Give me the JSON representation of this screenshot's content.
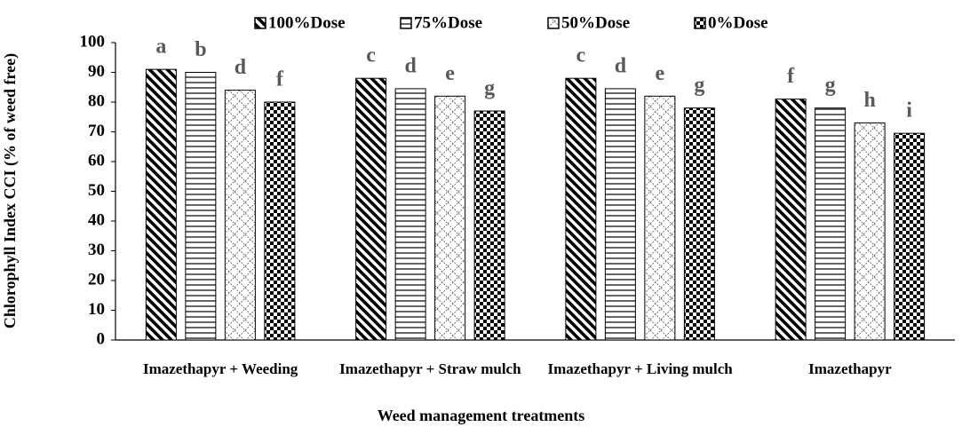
{
  "chart_data": {
    "type": "bar",
    "x_label": "Weed management treatments",
    "y_label": "Chlorophyll Index CCI (% of weed free)",
    "categories": [
      "Imazethapyr + Weeding",
      "Imazethapyr + Straw mulch",
      "Imazethapyr + Living mulch",
      "Imazethapyr"
    ],
    "series": [
      {
        "name": "100%Dose",
        "color": "#000000",
        "pattern": "diagonal",
        "values": [
          91,
          88,
          88,
          81
        ],
        "letters": [
          "a",
          "c",
          "c",
          "f"
        ]
      },
      {
        "name": "75%Dose",
        "color": "#000000",
        "pattern": "horizontal",
        "values": [
          90,
          84.5,
          84.5,
          78
        ],
        "letters": [
          "b",
          "d",
          "d",
          "g"
        ]
      },
      {
        "name": "50%Dose",
        "color": "#000000",
        "pattern": "crosshatch",
        "values": [
          84,
          82,
          82,
          73
        ],
        "letters": [
          "d",
          "e",
          "e",
          "h"
        ]
      },
      {
        "name": "0%Dose",
        "color": "#000000",
        "pattern": "checker",
        "values": [
          80,
          77,
          78,
          69.5
        ],
        "letters": [
          "f",
          "g",
          "g",
          "i"
        ]
      }
    ],
    "ylim": [
      0,
      100
    ],
    "yticks": [
      0,
      10,
      20,
      30,
      40,
      50,
      60,
      70,
      80,
      90,
      100
    ],
    "legend": "top"
  }
}
